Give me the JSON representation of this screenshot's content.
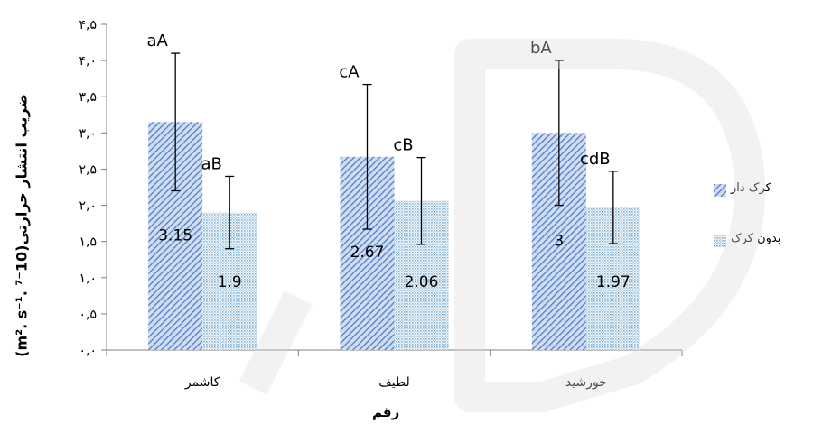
{
  "chart_data": {
    "type": "bar",
    "title": "",
    "xlabel": "رقم",
    "ylabel": "ضریب انتشار حرارتی(10⁻⁷ .m². s⁻¹)",
    "ylim": [
      0,
      4.5
    ],
    "ytick_labels": [
      "۰,۰",
      "۰,۵",
      "۱,۰",
      "۱,۵",
      "۲,۰",
      "۲,۵",
      "۳,۰",
      "۳,۵",
      "۴,۰",
      "۴,۵"
    ],
    "categories": [
      "کاشمر",
      "لطیف",
      "خورشید"
    ],
    "series": [
      {
        "name": "کرک دار",
        "values": [
          3.15,
          2.67,
          3
        ],
        "value_labels": [
          "3.15",
          "2.67",
          "3"
        ],
        "error": [
          0.95,
          1.0,
          1.0
        ],
        "letters": [
          "aA",
          "cA",
          "bA"
        ],
        "color": "#5b86c6"
      },
      {
        "name": "بدون کرک",
        "values": [
          1.9,
          2.06,
          1.97
        ],
        "value_labels": [
          "1.9",
          "2.06",
          "1.97"
        ],
        "error": [
          0.5,
          0.6,
          0.5
        ],
        "letters": [
          "aB",
          "cB",
          "cdB"
        ],
        "color": "#a9cbe0"
      }
    ],
    "grid": false,
    "legend_position": "right"
  }
}
